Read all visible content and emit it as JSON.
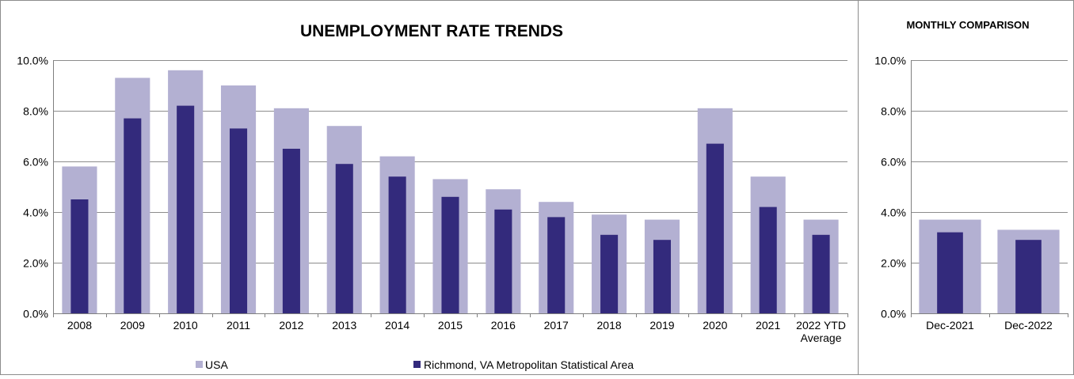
{
  "colors": {
    "usa": "#b3b0d2",
    "richmond": "#332a7c",
    "grid": "#8c8c8c",
    "axis": "#7f7f7f",
    "frame": "#8c8c8c"
  },
  "chart_data": [
    {
      "type": "bar",
      "title": "UNEMPLOYMENT RATE TRENDS",
      "categories": [
        "2008",
        "2009",
        "2010",
        "2011",
        "2012",
        "2013",
        "2014",
        "2015",
        "2016",
        "2017",
        "2018",
        "2019",
        "2020",
        "2021",
        "2022 YTD Average"
      ],
      "category_labels": [
        [
          "2008"
        ],
        [
          "2009"
        ],
        [
          "2010"
        ],
        [
          "2011"
        ],
        [
          "2012"
        ],
        [
          "2013"
        ],
        [
          "2014"
        ],
        [
          "2015"
        ],
        [
          "2016"
        ],
        [
          "2017"
        ],
        [
          "2018"
        ],
        [
          "2019"
        ],
        [
          "2020"
        ],
        [
          "2021"
        ],
        [
          "2022 YTD",
          "Average"
        ]
      ],
      "series": [
        {
          "name": "USA",
          "values": [
            5.8,
            9.3,
            9.6,
            9.0,
            8.1,
            7.4,
            6.2,
            5.3,
            4.9,
            4.4,
            3.9,
            3.7,
            8.1,
            5.4,
            3.7
          ]
        },
        {
          "name": "Richmond, VA Metropolitan Statistical Area",
          "values": [
            4.5,
            7.7,
            8.2,
            7.3,
            6.5,
            5.9,
            5.4,
            4.6,
            4.1,
            3.8,
            3.1,
            2.9,
            6.7,
            4.2,
            3.1
          ]
        }
      ],
      "ylim": [
        0,
        10
      ],
      "yticks": [
        0,
        2,
        4,
        6,
        8,
        10
      ],
      "ytick_labels": [
        "0.0%",
        "2.0%",
        "4.0%",
        "6.0%",
        "8.0%",
        "10.0%"
      ],
      "grid": true,
      "legend": {
        "position": "bottom",
        "entries": [
          "USA",
          "Richmond, VA Metropolitan Statistical Area"
        ]
      },
      "style": "overlapped bars"
    },
    {
      "type": "bar",
      "title": "MONTHLY COMPARISON",
      "categories": [
        "Dec-2021",
        "Dec-2022"
      ],
      "category_labels": [
        [
          "Dec-2021"
        ],
        [
          "Dec-2022"
        ]
      ],
      "series": [
        {
          "name": "USA",
          "values": [
            3.7,
            3.3
          ]
        },
        {
          "name": "Richmond, VA Metropolitan Statistical Area",
          "values": [
            3.2,
            2.9
          ]
        }
      ],
      "ylim": [
        0,
        10
      ],
      "yticks": [
        0,
        2,
        4,
        6,
        8,
        10
      ],
      "ytick_labels": [
        "0.0%",
        "2.0%",
        "4.0%",
        "6.0%",
        "8.0%",
        "10.0%"
      ],
      "grid": true,
      "style": "overlapped bars"
    }
  ]
}
